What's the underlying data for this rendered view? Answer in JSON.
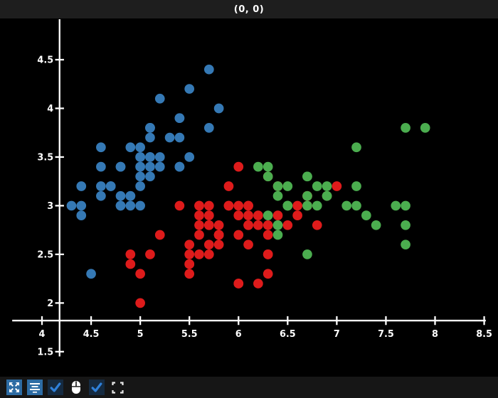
{
  "window": {
    "title": "(0, 0)"
  },
  "colors": {
    "background": "#000000",
    "titlebar_bg": "#1e1e1e",
    "toolbar_bg": "#161616",
    "axis": "#ffffff",
    "tick_label": "#ffffff",
    "cluster_blue": "#3579b5",
    "cluster_red": "#de1b1b",
    "cluster_green": "#4bad4f",
    "button_blue": "#2d6ca4",
    "checkbox_bg": "#152a40",
    "checkbox_check": "#2f80d9"
  },
  "chart_data": {
    "type": "scatter",
    "title": "(0, 0)",
    "xlabel": "",
    "ylabel": "",
    "grid": false,
    "legend_position": "none",
    "x_view": [
      3.7,
      8.52
    ],
    "y_view": [
      1.48,
      4.92
    ],
    "x_ticks": [
      4,
      4.5,
      5,
      5.5,
      6,
      6.5,
      7,
      7.5,
      8,
      8.5
    ],
    "y_ticks": [
      1.5,
      2,
      2.5,
      3,
      3.5,
      4,
      4.5
    ],
    "point_radius_px": 7.2,
    "series": [
      {
        "name": "cluster-blue",
        "color": "#3579b5",
        "points": [
          [
            5.1,
            3.5
          ],
          [
            4.9,
            3.0
          ],
          [
            4.7,
            3.2
          ],
          [
            4.6,
            3.1
          ],
          [
            5.0,
            3.6
          ],
          [
            5.4,
            3.9
          ],
          [
            4.6,
            3.4
          ],
          [
            5.0,
            3.4
          ],
          [
            4.4,
            2.9
          ],
          [
            4.9,
            3.1
          ],
          [
            5.4,
            3.7
          ],
          [
            4.8,
            3.4
          ],
          [
            4.8,
            3.0
          ],
          [
            4.3,
            3.0
          ],
          [
            5.8,
            4.0
          ],
          [
            5.7,
            4.4
          ],
          [
            5.4,
            3.9
          ],
          [
            5.1,
            3.5
          ],
          [
            5.7,
            3.8
          ],
          [
            5.1,
            3.8
          ],
          [
            5.4,
            3.4
          ],
          [
            5.1,
            3.7
          ],
          [
            4.6,
            3.6
          ],
          [
            5.1,
            3.3
          ],
          [
            4.8,
            3.4
          ],
          [
            5.0,
            3.0
          ],
          [
            5.0,
            3.4
          ],
          [
            5.2,
            3.5
          ],
          [
            5.2,
            3.4
          ],
          [
            4.7,
            3.2
          ],
          [
            4.8,
            3.1
          ],
          [
            5.4,
            3.4
          ],
          [
            5.2,
            4.1
          ],
          [
            5.5,
            4.2
          ],
          [
            4.9,
            3.1
          ],
          [
            5.0,
            3.2
          ],
          [
            5.5,
            3.5
          ],
          [
            4.9,
            3.6
          ],
          [
            4.4,
            3.0
          ],
          [
            5.1,
            3.4
          ],
          [
            5.0,
            3.5
          ],
          [
            4.5,
            2.3
          ],
          [
            4.4,
            3.2
          ],
          [
            5.0,
            3.5
          ],
          [
            5.1,
            3.8
          ],
          [
            4.8,
            3.0
          ],
          [
            5.1,
            3.8
          ],
          [
            4.6,
            3.2
          ],
          [
            5.3,
            3.7
          ],
          [
            5.0,
            3.3
          ]
        ]
      },
      {
        "name": "cluster-red",
        "color": "#de1b1b",
        "points": [
          [
            7.0,
            3.2
          ],
          [
            6.4,
            3.2
          ],
          [
            6.9,
            3.1
          ],
          [
            5.5,
            2.3
          ],
          [
            6.5,
            2.8
          ],
          [
            5.7,
            2.8
          ],
          [
            6.3,
            3.3
          ],
          [
            4.9,
            2.4
          ],
          [
            6.6,
            2.9
          ],
          [
            5.2,
            2.7
          ],
          [
            5.0,
            2.0
          ],
          [
            5.9,
            3.0
          ],
          [
            6.0,
            2.2
          ],
          [
            6.1,
            2.9
          ],
          [
            5.6,
            2.9
          ],
          [
            6.7,
            3.1
          ],
          [
            5.6,
            3.0
          ],
          [
            5.8,
            2.7
          ],
          [
            6.2,
            2.2
          ],
          [
            5.6,
            2.5
          ],
          [
            5.9,
            3.2
          ],
          [
            6.1,
            2.8
          ],
          [
            6.3,
            2.5
          ],
          [
            6.1,
            2.8
          ],
          [
            6.4,
            2.9
          ],
          [
            6.6,
            3.0
          ],
          [
            6.8,
            2.8
          ],
          [
            6.7,
            3.0
          ],
          [
            6.0,
            2.9
          ],
          [
            5.7,
            2.6
          ],
          [
            5.5,
            2.4
          ],
          [
            5.5,
            2.4
          ],
          [
            5.8,
            2.7
          ],
          [
            6.0,
            2.7
          ],
          [
            5.4,
            3.0
          ],
          [
            6.0,
            3.4
          ],
          [
            6.7,
            3.1
          ],
          [
            6.3,
            2.3
          ],
          [
            5.6,
            3.0
          ],
          [
            5.5,
            2.5
          ],
          [
            5.5,
            2.6
          ],
          [
            6.1,
            3.0
          ],
          [
            5.8,
            2.6
          ],
          [
            5.0,
            2.3
          ],
          [
            5.6,
            2.7
          ],
          [
            5.7,
            3.0
          ],
          [
            5.7,
            2.9
          ],
          [
            6.2,
            2.9
          ],
          [
            5.1,
            2.5
          ],
          [
            5.7,
            2.8
          ],
          [
            5.8,
            2.7
          ],
          [
            4.9,
            2.5
          ],
          [
            5.7,
            2.5
          ],
          [
            5.8,
            2.8
          ],
          [
            6.0,
            2.2
          ],
          [
            5.6,
            2.8
          ],
          [
            6.3,
            2.7
          ],
          [
            6.2,
            2.8
          ],
          [
            6.1,
            3.0
          ],
          [
            6.3,
            2.8
          ],
          [
            6.1,
            2.6
          ],
          [
            6.0,
            3.0
          ],
          [
            5.8,
            2.7
          ],
          [
            6.3,
            2.5
          ],
          [
            5.9,
            3.0
          ]
        ]
      },
      {
        "name": "cluster-green",
        "color": "#4bad4f",
        "points": [
          [
            6.3,
            3.3
          ],
          [
            7.1,
            3.0
          ],
          [
            6.3,
            2.9
          ],
          [
            6.5,
            3.0
          ],
          [
            7.6,
            3.0
          ],
          [
            7.3,
            2.9
          ],
          [
            6.7,
            2.5
          ],
          [
            7.2,
            3.6
          ],
          [
            6.5,
            3.2
          ],
          [
            6.4,
            2.7
          ],
          [
            6.8,
            3.0
          ],
          [
            6.4,
            3.2
          ],
          [
            6.5,
            3.0
          ],
          [
            7.7,
            3.8
          ],
          [
            7.7,
            2.6
          ],
          [
            6.9,
            3.2
          ],
          [
            7.7,
            2.8
          ],
          [
            6.7,
            3.3
          ],
          [
            7.2,
            3.2
          ],
          [
            6.4,
            2.8
          ],
          [
            7.2,
            3.0
          ],
          [
            7.4,
            2.8
          ],
          [
            7.9,
            3.8
          ],
          [
            6.4,
            2.8
          ],
          [
            7.7,
            3.0
          ],
          [
            6.3,
            3.4
          ],
          [
            6.4,
            3.1
          ],
          [
            6.9,
            3.1
          ],
          [
            6.7,
            3.1
          ],
          [
            6.9,
            3.1
          ],
          [
            6.8,
            3.2
          ],
          [
            6.7,
            3.3
          ],
          [
            6.7,
            3.0
          ],
          [
            6.5,
            3.0
          ],
          [
            6.2,
            3.4
          ]
        ]
      }
    ]
  },
  "toolbar": {
    "items": [
      {
        "name": "expand-arrows-button",
        "icon": "expand-arrows-icon",
        "type": "button"
      },
      {
        "name": "align-lines-button",
        "icon": "align-lines-icon",
        "type": "button"
      },
      {
        "name": "checkbox-1",
        "icon": "checkmark-icon",
        "type": "checkbox",
        "checked": true
      },
      {
        "name": "mouse-indicator",
        "icon": "mouse-icon",
        "type": "indicator"
      },
      {
        "name": "checkbox-2",
        "icon": "checkmark-icon",
        "type": "checkbox",
        "checked": true
      },
      {
        "name": "fullscreen-corners",
        "icon": "fullscreen-icon",
        "type": "button"
      }
    ]
  }
}
